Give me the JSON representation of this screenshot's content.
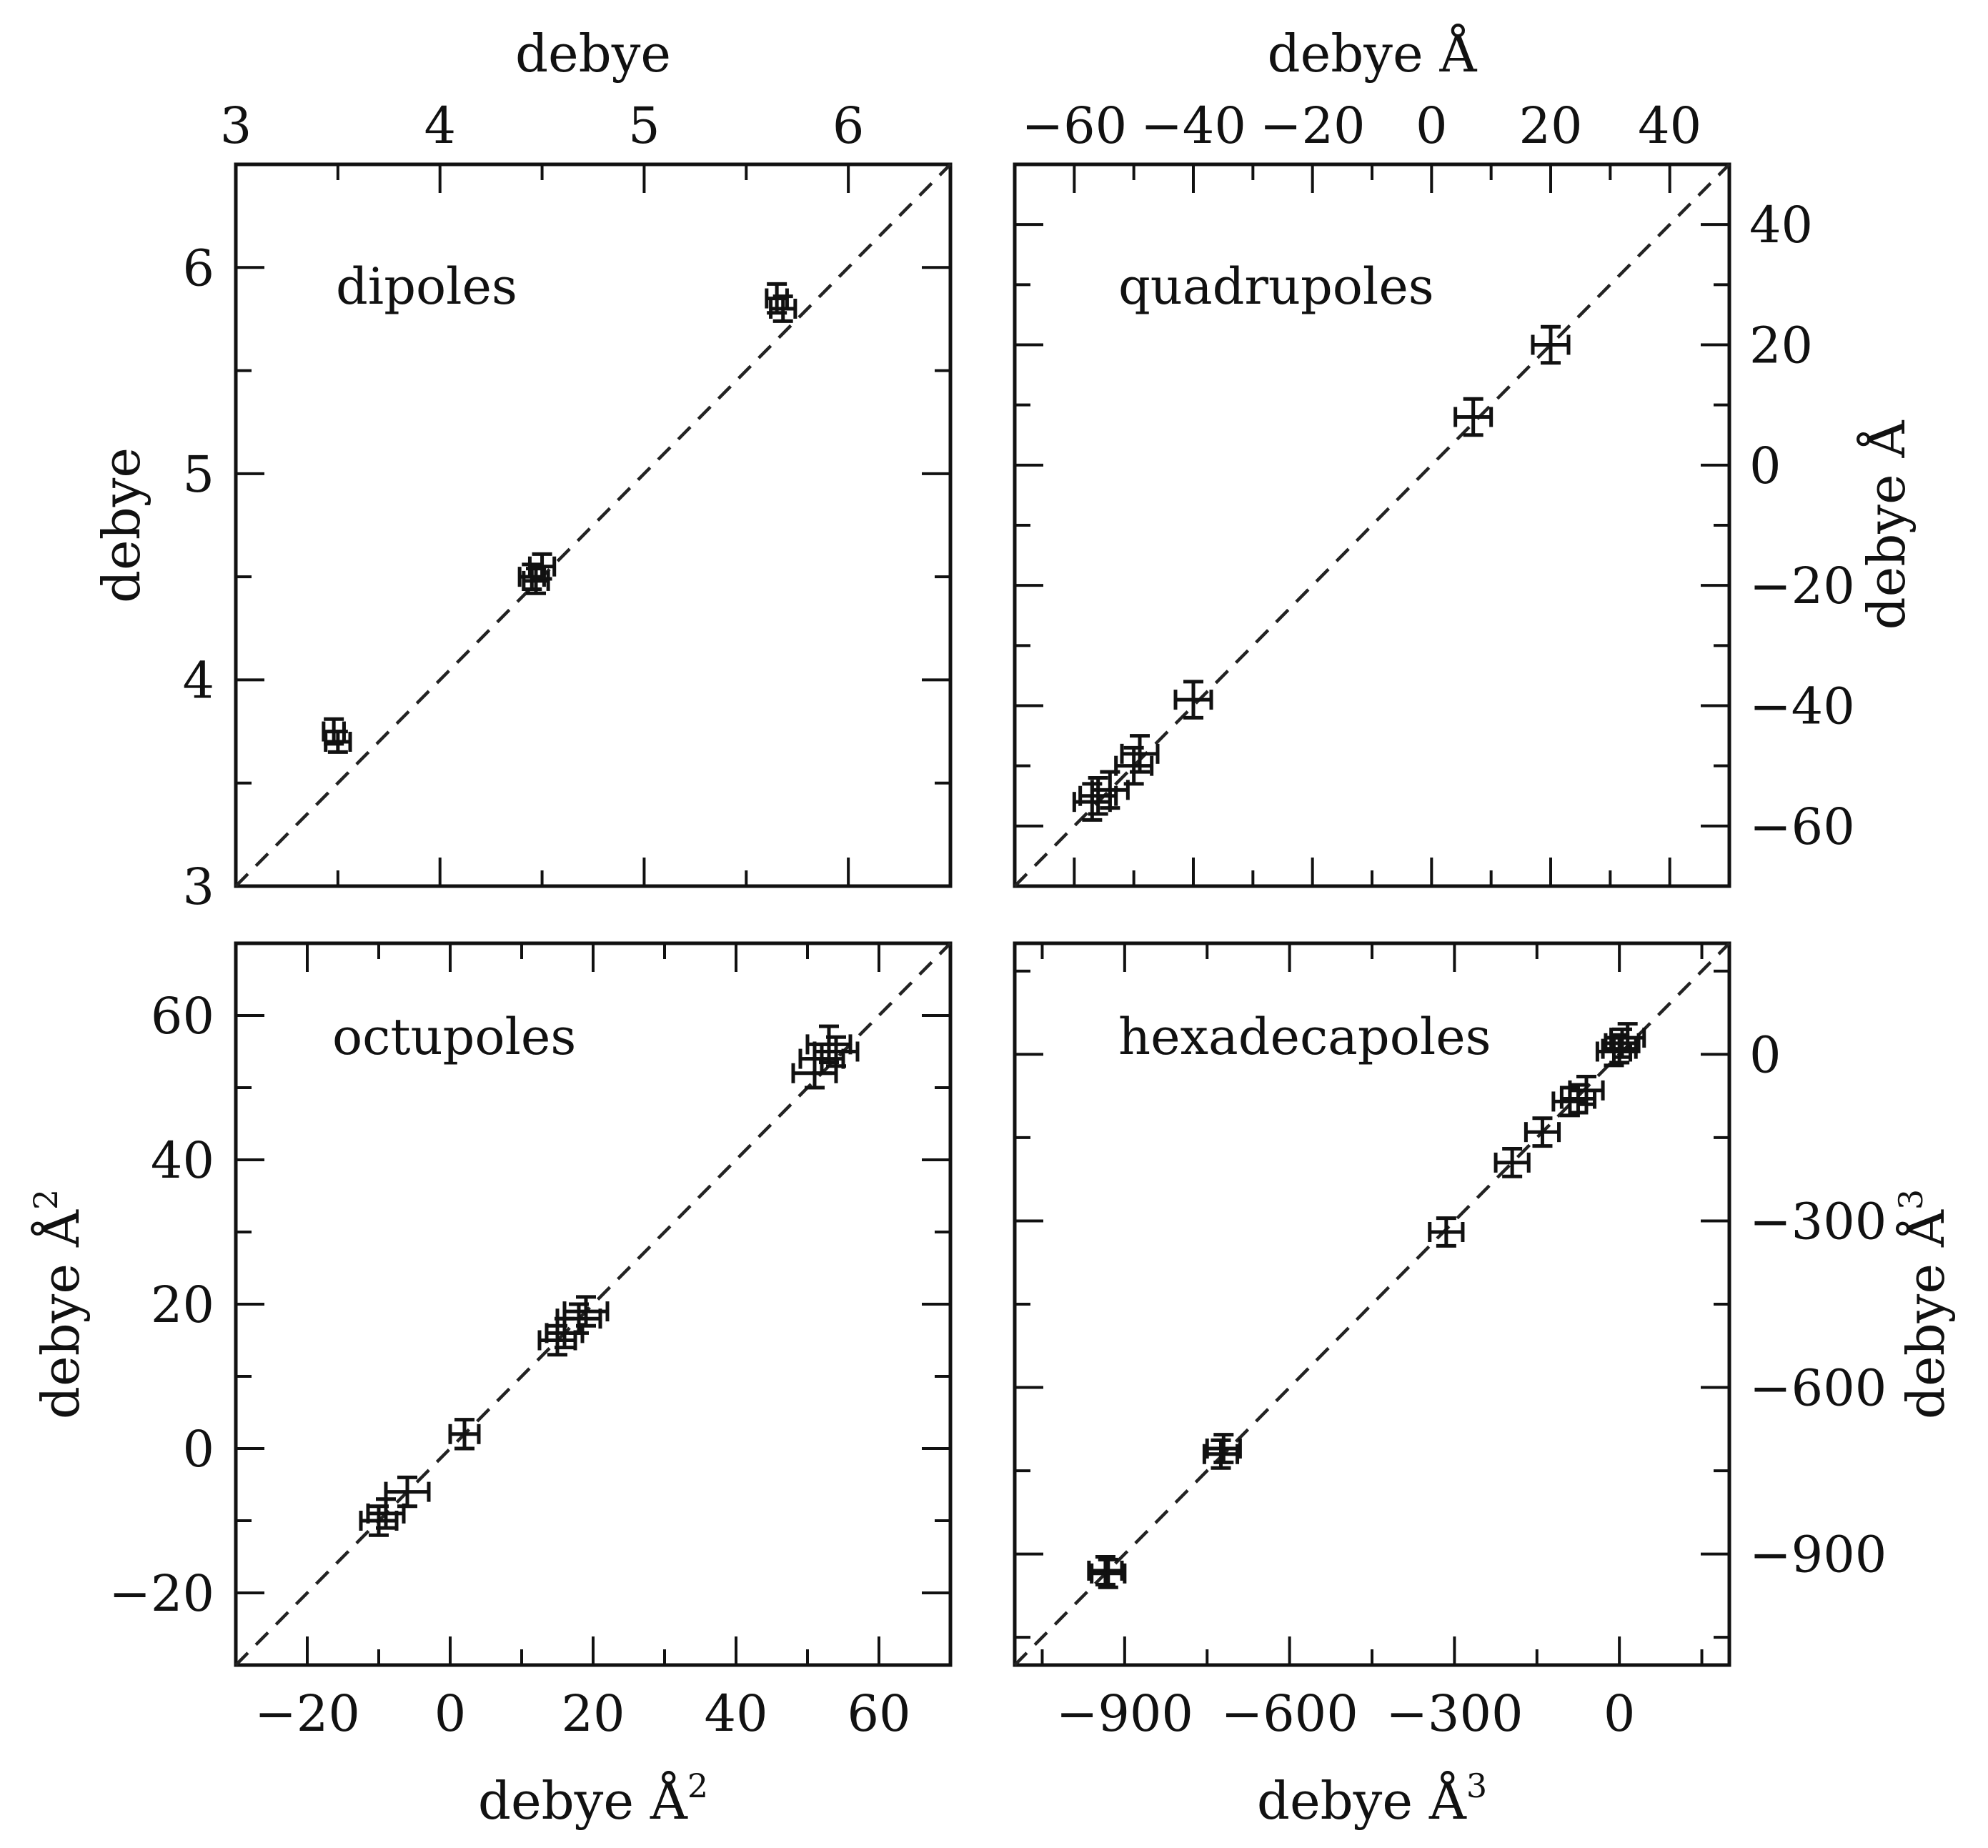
{
  "chart_data": [
    {
      "type": "scatter",
      "panel_label": "dipoles",
      "xlabel_top": "debye",
      "ylabel_left": "debye",
      "xlim": [
        3,
        6.5
      ],
      "ylim": [
        3,
        6.5
      ],
      "xticks": [
        3,
        4,
        5,
        6
      ],
      "yticks": [
        3,
        4,
        5,
        6
      ],
      "xtick_labels": [
        "3",
        "4",
        "5",
        "6"
      ],
      "ytick_labels": [
        "3",
        "4",
        "5",
        "6"
      ],
      "diagonal": true,
      "points": [
        {
          "x": 3.48,
          "y": 3.75,
          "xerr": 0.05,
          "yerr": 0.06
        },
        {
          "x": 3.5,
          "y": 3.7,
          "xerr": 0.06,
          "yerr": 0.05
        },
        {
          "x": 4.45,
          "y": 4.5,
          "xerr": 0.06,
          "yerr": 0.06
        },
        {
          "x": 4.5,
          "y": 4.55,
          "xerr": 0.06,
          "yerr": 0.06
        },
        {
          "x": 4.47,
          "y": 4.48,
          "xerr": 0.06,
          "yerr": 0.06
        },
        {
          "x": 5.65,
          "y": 5.85,
          "xerr": 0.05,
          "yerr": 0.07
        },
        {
          "x": 5.68,
          "y": 5.8,
          "xerr": 0.06,
          "yerr": 0.06
        }
      ]
    },
    {
      "type": "scatter",
      "panel_label": "quadrupoles",
      "xlabel_top": "debye Å",
      "ylabel_right": "debye Å",
      "xlim": [
        -70,
        50
      ],
      "ylim": [
        -70,
        50
      ],
      "xticks": [
        -60,
        -40,
        -20,
        0,
        20,
        40
      ],
      "yticks": [
        -60,
        -40,
        -20,
        0,
        20,
        40
      ],
      "xtick_labels": [
        "−60",
        "−40",
        "−20",
        "0",
        "20",
        "40"
      ],
      "ytick_labels": [
        "−60",
        "−40",
        "−20",
        "0",
        "20",
        "40"
      ],
      "diagonal": true,
      "points": [
        {
          "x": -57,
          "y": -56,
          "xerr": 3,
          "yerr": 3
        },
        {
          "x": -56,
          "y": -55,
          "xerr": 3,
          "yerr": 3
        },
        {
          "x": -54,
          "y": -54,
          "xerr": 3,
          "yerr": 3
        },
        {
          "x": -50,
          "y": -50,
          "xerr": 3,
          "yerr": 3
        },
        {
          "x": -49,
          "y": -48,
          "xerr": 3,
          "yerr": 3
        },
        {
          "x": -40,
          "y": -39,
          "xerr": 3,
          "yerr": 3
        },
        {
          "x": 7,
          "y": 8,
          "xerr": 3,
          "yerr": 3
        },
        {
          "x": 20,
          "y": 20,
          "xerr": 3,
          "yerr": 3
        }
      ]
    },
    {
      "type": "scatter",
      "panel_label": "octupoles",
      "xlabel_bottom": "debye Å",
      "xlabel_sup": "2",
      "ylabel_left": "debye Å",
      "ylabel_sup": "2",
      "xlim": [
        -30,
        70
      ],
      "ylim": [
        -30,
        70
      ],
      "xticks": [
        -20,
        0,
        20,
        40,
        60
      ],
      "yticks": [
        -20,
        0,
        20,
        40,
        60
      ],
      "xtick_labels": [
        "−20",
        "0",
        "20",
        "40",
        "60"
      ],
      "ytick_labels": [
        "−20",
        "0",
        "20",
        "40",
        "60"
      ],
      "diagonal": true,
      "points": [
        {
          "x": -10,
          "y": -10,
          "xerr": 2.5,
          "yerr": 2
        },
        {
          "x": -9,
          "y": -9,
          "xerr": 2.5,
          "yerr": 2
        },
        {
          "x": -6,
          "y": -6,
          "xerr": 3,
          "yerr": 2
        },
        {
          "x": 2,
          "y": 2,
          "xerr": 2,
          "yerr": 2
        },
        {
          "x": 15,
          "y": 15,
          "xerr": 2.5,
          "yerr": 2
        },
        {
          "x": 16,
          "y": 16,
          "xerr": 2.5,
          "yerr": 2
        },
        {
          "x": 18,
          "y": 18,
          "xerr": 3,
          "yerr": 2
        },
        {
          "x": 19,
          "y": 19,
          "xerr": 3,
          "yerr": 2
        },
        {
          "x": 51,
          "y": 52,
          "xerr": 3,
          "yerr": 2
        },
        {
          "x": 52,
          "y": 54,
          "xerr": 3,
          "yerr": 2
        },
        {
          "x": 53,
          "y": 56,
          "xerr": 3,
          "yerr": 2.5
        },
        {
          "x": 54,
          "y": 55,
          "xerr": 3,
          "yerr": 2
        }
      ]
    },
    {
      "type": "scatter",
      "panel_label": "hexadecapoles",
      "xlabel_bottom": "debye Å",
      "xlabel_sup": "3",
      "ylabel_right": "debye Å",
      "ylabel_sup": "3",
      "xlim": [
        -1100,
        200
      ],
      "ylim": [
        -1100,
        200
      ],
      "xticks": [
        -900,
        -600,
        -300,
        0
      ],
      "yticks": [
        -900,
        -600,
        -300,
        0
      ],
      "xtick_labels": [
        "−900",
        "−600",
        "−300",
        "0"
      ],
      "ytick_labels": [
        "−900",
        "−600",
        "−300",
        "0"
      ],
      "diagonal": true,
      "points": [
        {
          "x": -935,
          "y": -930,
          "xerr": 30,
          "yerr": 25
        },
        {
          "x": -930,
          "y": -935,
          "xerr": 30,
          "yerr": 25
        },
        {
          "x": -720,
          "y": -710,
          "xerr": 30,
          "yerr": 25
        },
        {
          "x": -725,
          "y": -720,
          "xerr": 30,
          "yerr": 25
        },
        {
          "x": -315,
          "y": -320,
          "xerr": 30,
          "yerr": 25
        },
        {
          "x": -195,
          "y": -195,
          "xerr": 30,
          "yerr": 25
        },
        {
          "x": -140,
          "y": -140,
          "xerr": 30,
          "yerr": 25
        },
        {
          "x": -90,
          "y": -85,
          "xerr": 30,
          "yerr": 25
        },
        {
          "x": -75,
          "y": -80,
          "xerr": 30,
          "yerr": 25
        },
        {
          "x": -60,
          "y": -65,
          "xerr": 30,
          "yerr": 25
        },
        {
          "x": -10,
          "y": 5,
          "xerr": 30,
          "yerr": 25
        },
        {
          "x": 0,
          "y": 10,
          "xerr": 30,
          "yerr": 25
        },
        {
          "x": 5,
          "y": 20,
          "xerr": 30,
          "yerr": 25
        },
        {
          "x": 15,
          "y": 30,
          "xerr": 30,
          "yerr": 25
        }
      ]
    }
  ]
}
